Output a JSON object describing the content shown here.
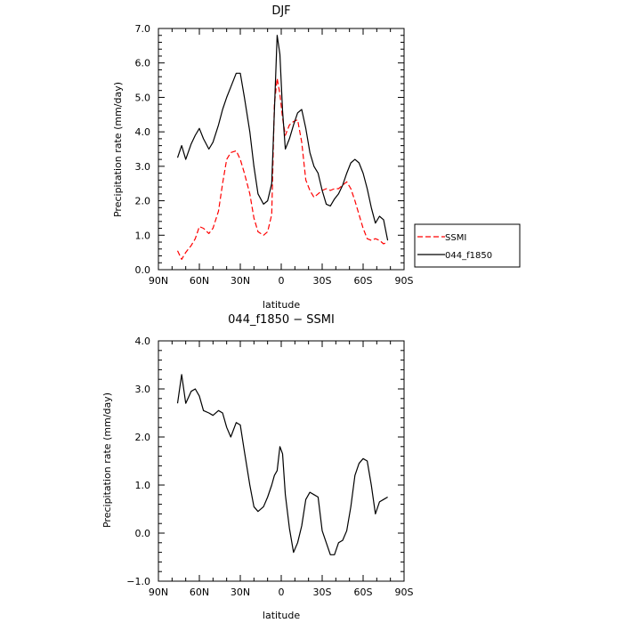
{
  "chart_data": [
    {
      "type": "line",
      "title": "DJF",
      "xlabel": "latitude",
      "ylabel": "Precipitation rate (mm/day)",
      "xlim": [
        -90,
        90
      ],
      "ylim": [
        0,
        7
      ],
      "x_ticks": [
        {
          "value": -90,
          "label": "90N"
        },
        {
          "value": -60,
          "label": "60N"
        },
        {
          "value": -30,
          "label": "30N"
        },
        {
          "value": 0,
          "label": "0"
        },
        {
          "value": 30,
          "label": "30S"
        },
        {
          "value": 60,
          "label": "60S"
        },
        {
          "value": 90,
          "label": "90S"
        }
      ],
      "y_ticks": [
        {
          "value": 0,
          "label": "0.0"
        },
        {
          "value": 1,
          "label": "1.0"
        },
        {
          "value": 2,
          "label": "2.0"
        },
        {
          "value": 3,
          "label": "3.0"
        },
        {
          "value": 4,
          "label": "4.0"
        },
        {
          "value": 5,
          "label": "5.0"
        },
        {
          "value": 6,
          "label": "6.0"
        },
        {
          "value": 7,
          "label": "7.0"
        }
      ],
      "legend": "right",
      "series": [
        {
          "name": "SSMI",
          "color": "#ff0000",
          "dash": true,
          "x": [
            -76,
            -73,
            -70,
            -66,
            -63,
            -60,
            -57,
            -53,
            -50,
            -46,
            -43,
            -40,
            -37,
            -33,
            -30,
            -27,
            -23,
            -20,
            -17,
            -13,
            -10,
            -7,
            -5,
            -3,
            -1,
            1,
            3,
            6,
            9,
            12,
            15,
            18,
            21,
            24,
            27,
            30,
            33,
            36,
            39,
            42,
            45,
            48,
            51,
            54,
            57,
            60,
            63,
            66,
            69,
            72,
            75,
            78
          ],
          "values": [
            0.55,
            0.3,
            0.5,
            0.7,
            0.9,
            1.25,
            1.2,
            1.05,
            1.2,
            1.7,
            2.5,
            3.2,
            3.4,
            3.45,
            3.2,
            2.8,
            2.2,
            1.5,
            1.1,
            1.0,
            1.1,
            1.6,
            4.8,
            5.55,
            5.1,
            4.4,
            3.9,
            4.2,
            4.3,
            4.35,
            3.7,
            2.6,
            2.3,
            2.1,
            2.2,
            2.3,
            2.35,
            2.3,
            2.35,
            2.35,
            2.45,
            2.55,
            2.35,
            2.0,
            1.6,
            1.2,
            0.9,
            0.85,
            0.9,
            0.85,
            0.75,
            0.8
          ]
        },
        {
          "name": "044_f1850",
          "color": "#000000",
          "dash": false,
          "x": [
            -76,
            -73,
            -70,
            -66,
            -63,
            -60,
            -57,
            -53,
            -50,
            -46,
            -43,
            -40,
            -37,
            -33,
            -30,
            -27,
            -23,
            -20,
            -17,
            -13,
            -10,
            -7,
            -5,
            -3,
            -1,
            1,
            3,
            6,
            9,
            12,
            15,
            18,
            21,
            24,
            27,
            30,
            33,
            36,
            39,
            42,
            45,
            48,
            51,
            54,
            57,
            60,
            63,
            66,
            69,
            72,
            75,
            78
          ],
          "values": [
            3.25,
            3.6,
            3.2,
            3.65,
            3.9,
            4.1,
            3.8,
            3.5,
            3.7,
            4.2,
            4.65,
            5.0,
            5.3,
            5.7,
            5.7,
            5.0,
            4.0,
            3.0,
            2.2,
            1.9,
            2.0,
            2.5,
            4.6,
            6.8,
            6.25,
            4.6,
            3.5,
            3.8,
            4.2,
            4.55,
            4.65,
            4.1,
            3.4,
            3.0,
            2.8,
            2.3,
            1.9,
            1.85,
            2.05,
            2.2,
            2.45,
            2.8,
            3.1,
            3.2,
            3.1,
            2.8,
            2.35,
            1.8,
            1.35,
            1.55,
            1.45,
            0.85
          ]
        }
      ]
    },
    {
      "type": "line",
      "title": "044_f1850 − SSMI",
      "xlabel": "latitude",
      "ylabel": "Precipitation rate (mm/day)",
      "xlim": [
        -90,
        90
      ],
      "ylim": [
        -1,
        4
      ],
      "x_ticks": [
        {
          "value": -90,
          "label": "90N"
        },
        {
          "value": -60,
          "label": "60N"
        },
        {
          "value": -30,
          "label": "30N"
        },
        {
          "value": 0,
          "label": "0"
        },
        {
          "value": 30,
          "label": "30S"
        },
        {
          "value": 60,
          "label": "60S"
        },
        {
          "value": 90,
          "label": "90S"
        }
      ],
      "y_ticks": [
        {
          "value": -1,
          "label": "−1.0"
        },
        {
          "value": 0,
          "label": "0.0"
        },
        {
          "value": 1,
          "label": "1.0"
        },
        {
          "value": 2,
          "label": "2.0"
        },
        {
          "value": 3,
          "label": "3.0"
        },
        {
          "value": 4,
          "label": "4.0"
        }
      ],
      "series": [
        {
          "color": "#000000",
          "dash": false,
          "x": [
            -76,
            -73,
            -70,
            -66,
            -63,
            -60,
            -57,
            -53,
            -50,
            -46,
            -43,
            -40,
            -37,
            -33,
            -30,
            -27,
            -23,
            -20,
            -17,
            -13,
            -10,
            -7,
            -5,
            -3,
            -1,
            1,
            3,
            6,
            9,
            12,
            15,
            18,
            21,
            24,
            27,
            30,
            33,
            36,
            39,
            42,
            45,
            48,
            51,
            54,
            57,
            60,
            63,
            66,
            69,
            72,
            75,
            78
          ],
          "values": [
            2.7,
            3.3,
            2.7,
            2.95,
            3.0,
            2.85,
            2.55,
            2.5,
            2.45,
            2.55,
            2.5,
            2.2,
            2.0,
            2.3,
            2.25,
            1.7,
            1.0,
            0.55,
            0.45,
            0.55,
            0.75,
            1.0,
            1.2,
            1.3,
            1.8,
            1.65,
            0.8,
            0.1,
            -0.4,
            -0.2,
            0.15,
            0.7,
            0.85,
            0.8,
            0.75,
            0.05,
            -0.2,
            -0.45,
            -0.45,
            -0.2,
            -0.15,
            0.05,
            0.55,
            1.2,
            1.45,
            1.55,
            1.5,
            1.0,
            0.4,
            0.65,
            0.7,
            0.75
          ]
        }
      ]
    }
  ]
}
